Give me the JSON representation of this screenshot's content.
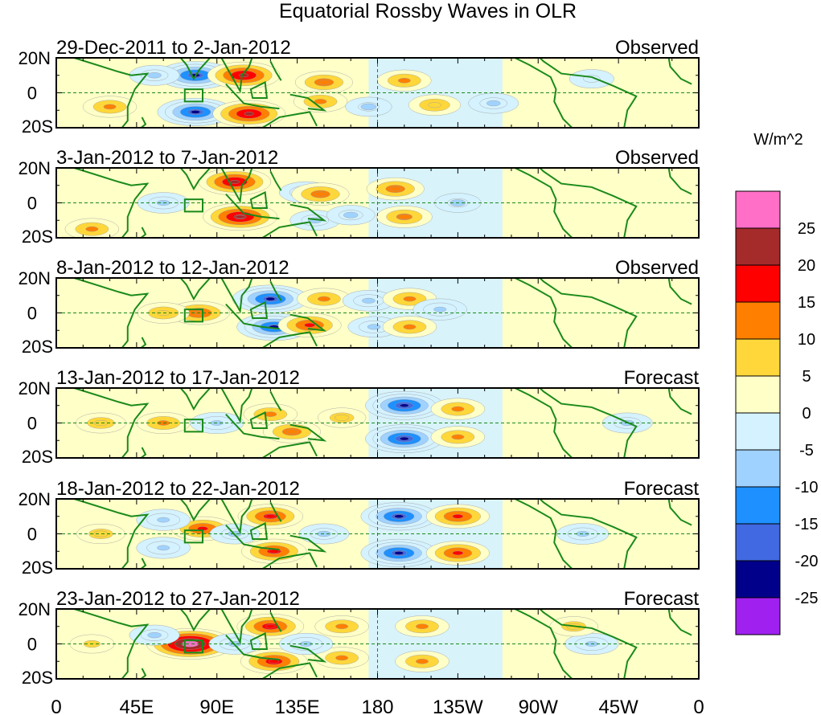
{
  "title": "Equatorial Rossby Waves in OLR",
  "chart_data": {
    "type": "heatmap",
    "title": "Equatorial Rossby Waves in OLR",
    "units": "W/m^2",
    "x_ticks": [
      "0",
      "45E",
      "90E",
      "135E",
      "180",
      "135W",
      "90W",
      "45W",
      "0"
    ],
    "y_ticks": [
      "20N",
      "0",
      "20S"
    ],
    "xlim": [
      0,
      360
    ],
    "ylim": [
      -20,
      20
    ],
    "colorbar": {
      "levels": [
        "25",
        "20",
        "15",
        "10",
        "5",
        "0",
        "-5",
        "-10",
        "-15",
        "-20",
        "-25"
      ],
      "colors": [
        "#ff6ec7",
        "#a52a2a",
        "#ff0000",
        "#ff7f00",
        "#ffd73a",
        "#ffffc8",
        "#d4f2ff",
        "#a0d2ff",
        "#1e90ff",
        "#4169e1",
        "#00008b",
        "#a020f0"
      ]
    },
    "panels": [
      {
        "period": "29-Dec-2011 to 2-Jan-2012",
        "status": "Observed",
        "anomalies": [
          {
            "lon": 78,
            "lat": 10,
            "value": -22
          },
          {
            "lon": 78,
            "lat": -11,
            "value": -22
          },
          {
            "lon": 105,
            "lat": 10,
            "value": 20
          },
          {
            "lon": 108,
            "lat": -12,
            "value": 20
          },
          {
            "lon": 30,
            "lat": -8,
            "value": 10
          },
          {
            "lon": 55,
            "lat": 10,
            "value": -8
          },
          {
            "lon": 150,
            "lat": 6,
            "value": 12
          },
          {
            "lon": 148,
            "lat": -5,
            "value": 10
          },
          {
            "lon": 175,
            "lat": -8,
            "value": -6
          },
          {
            "lon": 195,
            "lat": 7,
            "value": 10
          },
          {
            "lon": 212,
            "lat": -7,
            "value": 9
          },
          {
            "lon": 245,
            "lat": -6,
            "value": -8
          },
          {
            "lon": 300,
            "lat": 8,
            "value": -5
          }
        ]
      },
      {
        "period": "3-Jan-2012 to 7-Jan-2012",
        "status": "Observed",
        "anomalies": [
          {
            "lon": 100,
            "lat": 12,
            "value": 20
          },
          {
            "lon": 103,
            "lat": -8,
            "value": 21
          },
          {
            "lon": 140,
            "lat": 6,
            "value": -10
          },
          {
            "lon": 145,
            "lat": -10,
            "value": -8
          },
          {
            "lon": 60,
            "lat": 0,
            "value": -9
          },
          {
            "lon": 148,
            "lat": 5,
            "value": 12
          },
          {
            "lon": 190,
            "lat": 8,
            "value": 12
          },
          {
            "lon": 195,
            "lat": -8,
            "value": 11
          },
          {
            "lon": 225,
            "lat": 0,
            "value": -6
          },
          {
            "lon": 20,
            "lat": -15,
            "value": 10
          },
          {
            "lon": 165,
            "lat": -7,
            "value": -7
          }
        ]
      },
      {
        "period": "8-Jan-2012 to 12-Jan-2012",
        "status": "Observed",
        "anomalies": [
          {
            "lon": 80,
            "lat": 0,
            "value": 14
          },
          {
            "lon": 120,
            "lat": 8,
            "value": -22
          },
          {
            "lon": 122,
            "lat": -8,
            "value": -21
          },
          {
            "lon": 142,
            "lat": -7,
            "value": 15
          },
          {
            "lon": 150,
            "lat": 8,
            "value": 10
          },
          {
            "lon": 60,
            "lat": 0,
            "value": 9
          },
          {
            "lon": 175,
            "lat": 7,
            "value": -9
          },
          {
            "lon": 178,
            "lat": -8,
            "value": -9
          },
          {
            "lon": 198,
            "lat": 8,
            "value": 10
          },
          {
            "lon": 198,
            "lat": -8,
            "value": 10
          },
          {
            "lon": 215,
            "lat": 2,
            "value": -10
          }
        ]
      },
      {
        "period": "13-Jan-2012 to 17-Jan-2012",
        "status": "Forecast",
        "anomalies": [
          {
            "lon": 195,
            "lat": 10,
            "value": -23
          },
          {
            "lon": 195,
            "lat": -9,
            "value": -23
          },
          {
            "lon": 60,
            "lat": 0,
            "value": 10
          },
          {
            "lon": 90,
            "lat": 0,
            "value": -10
          },
          {
            "lon": 120,
            "lat": 5,
            "value": 10
          },
          {
            "lon": 132,
            "lat": -5,
            "value": 12
          },
          {
            "lon": 160,
            "lat": 3,
            "value": 7
          },
          {
            "lon": 225,
            "lat": 8,
            "value": 10
          },
          {
            "lon": 225,
            "lat": -8,
            "value": 10
          },
          {
            "lon": 320,
            "lat": 0,
            "value": -8
          },
          {
            "lon": 25,
            "lat": 0,
            "value": 8
          }
        ]
      },
      {
        "period": "18-Jan-2012 to 22-Jan-2012",
        "status": "Forecast",
        "anomalies": [
          {
            "lon": 192,
            "lat": 10,
            "value": -22
          },
          {
            "lon": 192,
            "lat": -11,
            "value": -22
          },
          {
            "lon": 225,
            "lat": 10,
            "value": 15
          },
          {
            "lon": 225,
            "lat": -11,
            "value": 15
          },
          {
            "lon": 82,
            "lat": 3,
            "value": 15
          },
          {
            "lon": 60,
            "lat": 8,
            "value": -10
          },
          {
            "lon": 60,
            "lat": -8,
            "value": -10
          },
          {
            "lon": 120,
            "lat": 10,
            "value": 16
          },
          {
            "lon": 122,
            "lat": -10,
            "value": 16
          },
          {
            "lon": 100,
            "lat": 0,
            "value": -8
          },
          {
            "lon": 150,
            "lat": 0,
            "value": -8
          },
          {
            "lon": 295,
            "lat": 0,
            "value": -9
          },
          {
            "lon": 25,
            "lat": 0,
            "value": 7
          }
        ]
      },
      {
        "period": "23-Jan-2012 to 27-Jan-2012",
        "status": "Forecast",
        "anomalies": [
          {
            "lon": 75,
            "lat": 0,
            "value": 28
          },
          {
            "lon": 120,
            "lat": 10,
            "value": 17
          },
          {
            "lon": 122,
            "lat": -10,
            "value": 17
          },
          {
            "lon": 160,
            "lat": 10,
            "value": 10
          },
          {
            "lon": 160,
            "lat": -8,
            "value": 10
          },
          {
            "lon": 205,
            "lat": 10,
            "value": 10
          },
          {
            "lon": 205,
            "lat": -10,
            "value": 10
          },
          {
            "lon": 55,
            "lat": 5,
            "value": -8
          },
          {
            "lon": 100,
            "lat": 0,
            "value": -9
          },
          {
            "lon": 140,
            "lat": 0,
            "value": -10
          },
          {
            "lon": 300,
            "lat": 0,
            "value": -10
          },
          {
            "lon": 290,
            "lat": 10,
            "value": 7
          },
          {
            "lon": 20,
            "lat": 0,
            "value": 5
          }
        ]
      }
    ]
  }
}
